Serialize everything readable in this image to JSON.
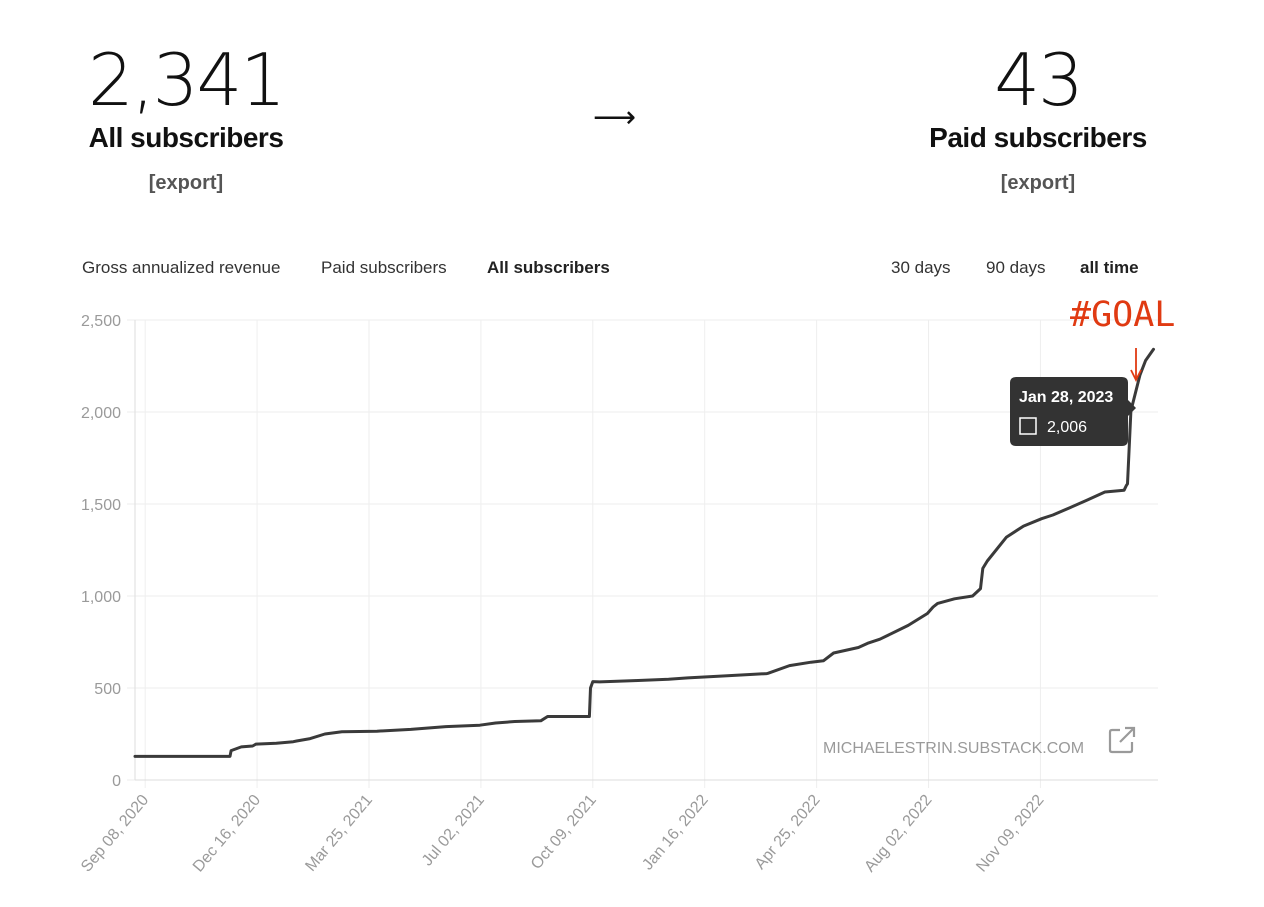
{
  "stats": {
    "all": {
      "value": "2,341",
      "label": "All subscribers",
      "export": "[export]"
    },
    "arrow": "⟶",
    "paid": {
      "value": "43",
      "label": "Paid subscribers",
      "export": "[export]"
    }
  },
  "metric_tabs": [
    {
      "label": "Gross annualized revenue",
      "active": false
    },
    {
      "label": "Paid subscribers",
      "active": false
    },
    {
      "label": "All subscribers",
      "active": true
    }
  ],
  "range_tabs": [
    {
      "label": "30 days",
      "active": false
    },
    {
      "label": "90 days",
      "active": false
    },
    {
      "label": "all time",
      "active": true
    }
  ],
  "watermark": "MICHAELESTRIN.SUBSTACK.COM",
  "annotation": "#GOAL",
  "tooltip": {
    "date": "Jan 28, 2023",
    "value": "2,006"
  },
  "colors": {
    "line": "#3a3a3a",
    "annotation": "#e03a12",
    "tooltip_bg": "#333333",
    "axis_text": "#9a9a9a",
    "grid": "#eeeeee"
  },
  "chart_data": {
    "type": "line",
    "title": "",
    "xlabel": "",
    "ylabel": "",
    "ylim": [
      0,
      2500
    ],
    "yticks": [
      0,
      500,
      1000,
      1500,
      2000,
      2500
    ],
    "ytick_labels": [
      "0",
      "500",
      "1,000",
      "1,500",
      "2,000",
      "2,500"
    ],
    "xticks": [
      "2020-09-08",
      "2020-12-16",
      "2021-03-25",
      "2021-07-02",
      "2021-10-09",
      "2022-01-16",
      "2022-04-25",
      "2022-08-02",
      "2022-11-09"
    ],
    "xtick_labels": [
      "Sep 08, 2020",
      "Dec 16, 2020",
      "Mar 25, 2021",
      "Jul 02, 2021",
      "Oct 09, 2021",
      "Jan 16, 2022",
      "Apr 25, 2022",
      "Aug 02, 2022",
      "Nov 09, 2022"
    ],
    "xlim": [
      "2020-08-30",
      "2023-02-21"
    ],
    "grid": true,
    "series": [
      {
        "x": [
          "2020-08-30",
          "2020-11-22",
          "2020-11-23",
          "2020-12-02",
          "2020-12-12",
          "2020-12-15",
          "2021-01-02",
          "2021-01-17",
          "2021-01-20",
          "2021-02-01",
          "2021-02-14",
          "2021-03-01",
          "2021-04-01",
          "2021-05-01",
          "2021-06-01",
          "2021-07-01",
          "2021-07-15",
          "2021-08-01",
          "2021-08-24",
          "2021-08-30",
          "2021-10-06",
          "2021-10-07",
          "2021-10-09",
          "2021-10-15",
          "2021-11-15",
          "2021-12-15",
          "2022-01-01",
          "2022-02-01",
          "2022-03-01",
          "2022-03-12",
          "2022-03-13",
          "2022-04-01",
          "2022-04-20",
          "2022-05-01",
          "2022-05-10",
          "2022-06-01",
          "2022-06-10",
          "2022-06-20",
          "2022-07-15",
          "2022-08-01",
          "2022-08-06",
          "2022-08-10",
          "2022-08-25",
          "2022-09-10",
          "2022-09-17",
          "2022-09-19",
          "2022-09-23",
          "2022-10-10",
          "2022-10-25",
          "2022-11-10",
          "2022-11-20",
          "2022-12-05",
          "2022-12-20",
          "2023-01-05",
          "2023-01-22",
          "2023-01-24",
          "2023-01-25",
          "2023-01-28",
          "2023-02-05",
          "2023-02-10",
          "2023-02-17"
        ],
        "y": [
          128,
          128,
          160,
          180,
          185,
          195,
          200,
          208,
          212,
          225,
          250,
          262,
          265,
          275,
          290,
          298,
          310,
          318,
          322,
          345,
          345,
          500,
          535,
          533,
          540,
          548,
          555,
          565,
          575,
          578,
          580,
          622,
          640,
          648,
          690,
          720,
          745,
          765,
          840,
          905,
          940,
          960,
          985,
          1000,
          1040,
          1150,
          1190,
          1320,
          1380,
          1420,
          1440,
          1480,
          1520,
          1565,
          1575,
          1600,
          1610,
          2006,
          2200,
          2280,
          2341
        ]
      }
    ]
  }
}
